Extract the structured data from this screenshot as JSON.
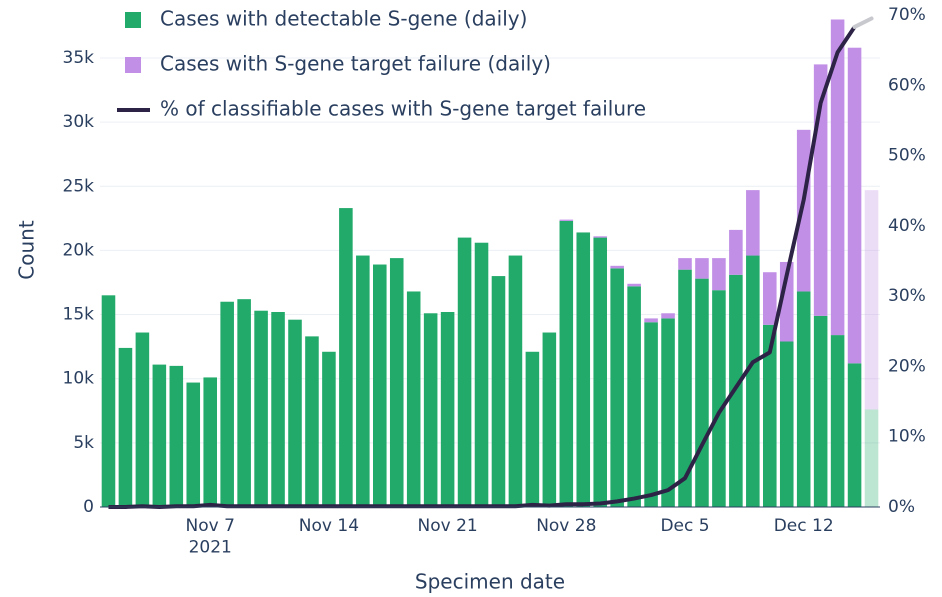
{
  "chart_data": {
    "type": "bar",
    "barmode": "stack",
    "x_label": "Specimen date",
    "y_label": "Count",
    "x": [
      "2021-11-01",
      "2021-11-02",
      "2021-11-03",
      "2021-11-04",
      "2021-11-05",
      "2021-11-06",
      "2021-11-07",
      "2021-11-08",
      "2021-11-09",
      "2021-11-10",
      "2021-11-11",
      "2021-11-12",
      "2021-11-13",
      "2021-11-14",
      "2021-11-15",
      "2021-11-16",
      "2021-11-17",
      "2021-11-18",
      "2021-11-19",
      "2021-11-20",
      "2021-11-21",
      "2021-11-22",
      "2021-11-23",
      "2021-11-24",
      "2021-11-25",
      "2021-11-26",
      "2021-11-27",
      "2021-11-28",
      "2021-11-29",
      "2021-11-30",
      "2021-12-01",
      "2021-12-02",
      "2021-12-03",
      "2021-12-04",
      "2021-12-05",
      "2021-12-06",
      "2021-12-07",
      "2021-12-08",
      "2021-12-09",
      "2021-12-10",
      "2021-12-11",
      "2021-12-12",
      "2021-12-13",
      "2021-12-14",
      "2021-12-15",
      "2021-12-16"
    ],
    "xlim": [
      "2021-10-31T12:00Z",
      "2021-12-16T12:00Z"
    ],
    "xticks": [
      {
        "value": "2021-11-07",
        "label": "Nov 7\n2021"
      },
      {
        "value": "2021-11-14",
        "label": "Nov 14"
      },
      {
        "value": "2021-11-21",
        "label": "Nov 21"
      },
      {
        "value": "2021-11-28",
        "label": "Nov 28"
      },
      {
        "value": "2021-12-05",
        "label": "Dec 5"
      },
      {
        "value": "2021-12-12",
        "label": "Dec 12"
      }
    ],
    "ylim": [
      0,
      38350
    ],
    "yticks": [
      0,
      {
        "value": 5000,
        "label": "5k"
      },
      {
        "value": 10000,
        "label": "10k"
      },
      {
        "value": 15000,
        "label": "15k"
      },
      {
        "value": 20000,
        "label": "20k"
      },
      {
        "value": 25000,
        "label": "25k"
      },
      {
        "value": 30000,
        "label": "30k"
      },
      {
        "value": 35000,
        "label": "35k"
      }
    ],
    "y2lim": [
      0,
      70
    ],
    "y2ticks": [
      {
        "value": 0,
        "label": "0%"
      },
      {
        "value": 10,
        "label": "10%"
      },
      {
        "value": 20,
        "label": "20%"
      },
      {
        "value": 30,
        "label": "30%"
      },
      {
        "value": 40,
        "label": "40%"
      },
      {
        "value": 50,
        "label": "50%"
      },
      {
        "value": 60,
        "label": "60%"
      },
      {
        "value": 70,
        "label": "70%"
      }
    ],
    "grid": true,
    "legend": "top-left",
    "series": [
      {
        "name": "Cases with detectable S-gene (daily)",
        "color": "#22aa6b",
        "type": "bar",
        "values": [
          16500,
          12400,
          13600,
          11100,
          11000,
          9700,
          10100,
          16000,
          16200,
          15300,
          15200,
          14600,
          13300,
          12100,
          23300,
          19600,
          18900,
          19400,
          16800,
          15100,
          15200,
          21000,
          20600,
          18000,
          19600,
          12100,
          13600,
          22300,
          21400,
          21000,
          18600,
          17200,
          14400,
          14700,
          18500,
          17800,
          16900,
          18100,
          19600,
          14200,
          12900,
          16800,
          14900,
          13400,
          11200,
          7600
        ]
      },
      {
        "name": "Cases with S-gene target failure (daily)",
        "color": "#c18fe6",
        "type": "bar",
        "values": [
          0,
          0,
          0,
          0,
          0,
          0,
          0,
          0,
          0,
          0,
          0,
          0,
          0,
          0,
          0,
          0,
          0,
          0,
          0,
          0,
          0,
          0,
          0,
          0,
          0,
          0,
          0,
          100,
          0,
          100,
          200,
          200,
          300,
          400,
          900,
          1600,
          2500,
          3500,
          5100,
          4100,
          6200,
          12600,
          19600,
          24600,
          24600,
          17100
        ]
      },
      {
        "name": "% of classifiable cases with S-gene target failure",
        "color": "#2d2346",
        "type": "line",
        "axis": "y2",
        "values": [
          0,
          0,
          0.1,
          0,
          0.1,
          0.1,
          0.3,
          0.1,
          0.1,
          0.1,
          0.1,
          0.1,
          0.1,
          0.1,
          0.1,
          0.1,
          0.1,
          0.1,
          0.1,
          0.1,
          0.1,
          0.1,
          0.1,
          0.1,
          0.1,
          0.3,
          0.2,
          0.4,
          0.4,
          0.5,
          0.8,
          1.2,
          1.7,
          2.4,
          4.1,
          8.8,
          13.4,
          17.0,
          20.6,
          22.0,
          33.0,
          43.7,
          57.5,
          64.7,
          68.3,
          69.5
        ]
      }
    ]
  }
}
